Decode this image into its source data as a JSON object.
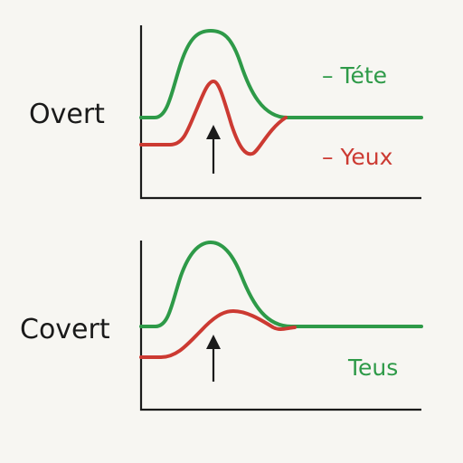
{
  "colors": {
    "background": "#f7f6f2",
    "green": "#2e9a48",
    "red": "#cc3a32",
    "ink": "#1a1a1a"
  },
  "panels": [
    {
      "label": "Overt",
      "legend": [
        {
          "dash": "–",
          "text": "Téte",
          "color": "#2e9a48"
        },
        {
          "dash": "–",
          "text": "Yeux",
          "color": "#cc3a32"
        }
      ]
    },
    {
      "label": "Covert",
      "legend": [
        {
          "dash": "",
          "text": "Teus",
          "color": "#2e9a48"
        }
      ]
    }
  ]
}
